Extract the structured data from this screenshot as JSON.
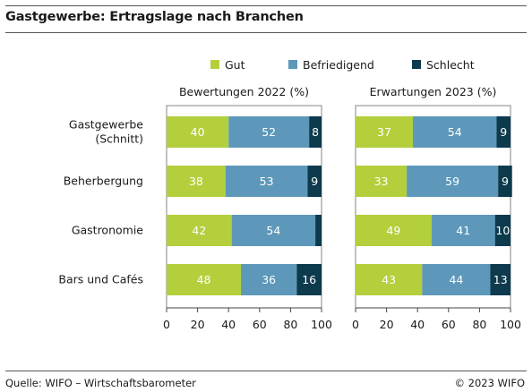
{
  "header": {
    "title": "Gastgewerbe: Ertragslage nach Branchen"
  },
  "footer": {
    "source": "Quelle: WIFO – Wirtschaftsbarometer",
    "copyright": "© 2023 WIFO"
  },
  "chart_data": {
    "type": "bar",
    "orientation": "horizontal",
    "stacked": true,
    "categories": [
      "Gastgewerbe\n(Schnitt)",
      "Beherbergung",
      "Gastronomie",
      "Bars und Cafés"
    ],
    "legend": {
      "placement": "top",
      "items": [
        {
          "name": "Gut",
          "color": "#b3cf3c"
        },
        {
          "name": "Befriedigend",
          "color": "#5d98ba"
        },
        {
          "name": "Schlecht",
          "color": "#0d3a4d"
        }
      ]
    },
    "panels": [
      {
        "title": "Bewertungen 2022 (%)",
        "series": [
          {
            "name": "Gut",
            "values": [
              40,
              38,
              42,
              48
            ]
          },
          {
            "name": "Befriedigend",
            "values": [
              52,
              53,
              54,
              36
            ]
          },
          {
            "name": "Schlecht",
            "values": [
              8,
              9,
              4,
              16
            ]
          }
        ],
        "labels": [
          [
            "40",
            "52",
            "8"
          ],
          [
            "38",
            "53",
            "9"
          ],
          [
            "42",
            "54",
            ""
          ],
          [
            "48",
            "36",
            "16"
          ]
        ]
      },
      {
        "title": "Erwartungen 2023 (%)",
        "series": [
          {
            "name": "Gut",
            "values": [
              37,
              33,
              49,
              43
            ]
          },
          {
            "name": "Befriedigend",
            "values": [
              54,
              59,
              41,
              44
            ]
          },
          {
            "name": "Schlecht",
            "values": [
              9,
              9,
              10,
              13
            ]
          }
        ],
        "labels": [
          [
            "37",
            "54",
            "9"
          ],
          [
            "33",
            "59",
            "9"
          ],
          [
            "49",
            "41",
            "10"
          ],
          [
            "43",
            "44",
            "13"
          ]
        ]
      }
    ],
    "xlim": [
      0,
      100
    ],
    "xticks": [
      0,
      20,
      40,
      60,
      80,
      100
    ],
    "label_colors": [
      "#ffffff",
      "#ffffff",
      "#ffffff"
    ]
  }
}
